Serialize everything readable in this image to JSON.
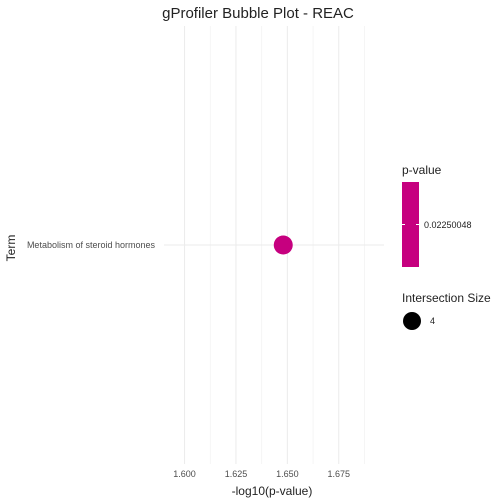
{
  "chart_data": {
    "type": "scatter",
    "title": "gProfiler Bubble Plot - REAC",
    "xlabel": "-log10(p-value)",
    "ylabel": "Term",
    "xlim": [
      1.59,
      1.697
    ],
    "x_ticks": [
      1.6,
      1.625,
      1.65,
      1.675
    ],
    "x_tick_labels": [
      "1.600",
      "1.625",
      "1.650",
      "1.675"
    ],
    "grid": true,
    "categories": [
      "Metabolism of steroid hormones"
    ],
    "points": [
      {
        "term": "Metabolism of steroid hormones",
        "x": 1.648,
        "intersection_size": 4,
        "p_value": 0.02250048
      }
    ],
    "color_legend": {
      "title": "p-value",
      "label": "0.02250048",
      "color": "#c6007f"
    },
    "size_legend": {
      "title": "Intersection Size",
      "label": "4",
      "color": "#000000"
    }
  }
}
